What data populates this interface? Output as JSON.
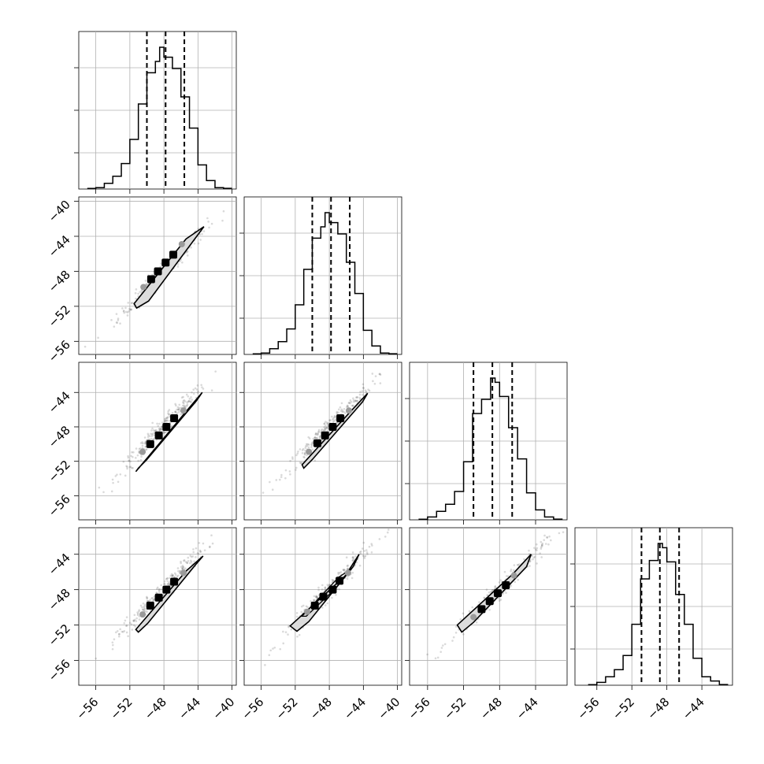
{
  "chart_data": {
    "type": "corner",
    "title": "",
    "parameters": [
      "",
      "",
      "",
      ""
    ],
    "grid": true,
    "columns": [
      {
        "xlim": [
          -58.0,
          -39.5
        ],
        "xticks": [
          -56,
          -52,
          -48,
          -44,
          -40
        ],
        "xticklabels": [
          "−56",
          "−52",
          "−48",
          "−44",
          "−40"
        ]
      },
      {
        "xlim": [
          -58.0,
          -39.5
        ],
        "xticks": [
          -56,
          -52,
          -48,
          -44,
          -40
        ],
        "xticklabels": [
          "−56",
          "−52",
          "−48",
          "−44",
          "−40"
        ]
      },
      {
        "xlim": [
          -58.0,
          -40.5
        ],
        "xticks": [
          -56,
          -52,
          -48,
          -44
        ],
        "xticklabels": [
          "−56",
          "−52",
          "−48",
          "−44"
        ]
      },
      {
        "xlim": [
          -58.5,
          -40.5
        ],
        "xticks": [
          -56,
          -52,
          -48,
          -44
        ],
        "xticklabels": [
          "−56",
          "−52",
          "−48",
          "−44"
        ]
      }
    ],
    "rows": [
      null,
      {
        "ylim": [
          -57.5,
          -39.5
        ],
        "yticks": [
          -56,
          -52,
          -48,
          -44,
          -40
        ],
        "yticklabels": [
          "−56",
          "−52",
          "−48",
          "−44",
          "−40"
        ]
      },
      {
        "ylim": [
          -58.8,
          -40.5
        ],
        "yticks": [
          -56,
          -52,
          -48,
          -44
        ],
        "yticklabels": [
          "−56",
          "−52",
          "−48",
          "−44"
        ]
      },
      {
        "ylim": [
          -58.8,
          -41.0
        ],
        "yticks": [
          -56,
          -52,
          -48,
          -44
        ],
        "yticklabels": [
          "−56",
          "−52",
          "−48",
          "−44"
        ]
      }
    ],
    "histograms": [
      {
        "bin_edges": [
          -57.0,
          -56.0,
          -55.0,
          -54.0,
          -53.0,
          -52.0,
          -51.0,
          -50.0,
          -49.0,
          -48.5,
          -48.0,
          -47.0,
          -46.0,
          -45.0,
          -44.0,
          -43.0,
          -42.0,
          -41.0,
          -40.0
        ],
        "counts": [
          0.004,
          0.01,
          0.04,
          0.09,
          0.18,
          0.35,
          0.6,
          0.82,
          0.9,
          1.0,
          0.93,
          0.85,
          0.65,
          0.43,
          0.17,
          0.06,
          0.01,
          0.005
        ],
        "quantiles": [
          -50.0,
          -47.8,
          -45.6
        ]
      },
      {
        "bin_edges": [
          -57.0,
          -56.0,
          -55.0,
          -54.0,
          -53.0,
          -52.0,
          -51.0,
          -50.0,
          -49.0,
          -48.5,
          -48.0,
          -47.0,
          -46.0,
          -45.0,
          -44.0,
          -43.0,
          -42.0,
          -41.0,
          -40.0
        ],
        "counts": [
          0.004,
          0.01,
          0.04,
          0.09,
          0.18,
          0.35,
          0.6,
          0.82,
          0.9,
          1.0,
          0.93,
          0.85,
          0.65,
          0.43,
          0.17,
          0.06,
          0.01,
          0.005
        ],
        "quantiles": [
          -50.0,
          -47.8,
          -45.6
        ]
      },
      {
        "bin_edges": [
          -57.0,
          -56.0,
          -55.0,
          -54.0,
          -53.0,
          -52.0,
          -51.0,
          -50.0,
          -49.0,
          -48.5,
          -48.0,
          -47.0,
          -46.0,
          -45.0,
          -44.0,
          -43.0,
          -42.0,
          -41.0
        ],
        "counts": [
          0.004,
          0.02,
          0.06,
          0.11,
          0.2,
          0.41,
          0.75,
          0.85,
          1.0,
          0.97,
          0.87,
          0.65,
          0.43,
          0.19,
          0.07,
          0.02,
          0.005
        ],
        "quantiles": [
          -50.9,
          -48.8,
          -46.6
        ]
      },
      {
        "bin_edges": [
          -57.0,
          -56.0,
          -55.0,
          -54.0,
          -53.0,
          -52.0,
          -51.0,
          -50.0,
          -49.0,
          -48.5,
          -48.0,
          -47.0,
          -46.0,
          -45.0,
          -44.0,
          -43.0,
          -42.0,
          -41.0
        ],
        "counts": [
          0.004,
          0.02,
          0.06,
          0.11,
          0.21,
          0.43,
          0.75,
          0.88,
          1.0,
          0.97,
          0.87,
          0.64,
          0.43,
          0.19,
          0.06,
          0.03,
          0.005
        ],
        "quantiles": [
          -50.9,
          -48.8,
          -46.6
        ]
      }
    ],
    "pairs": [
      {
        "row": 1,
        "col": 0,
        "outer": [
          [
            -51.5,
            -51.7
          ],
          [
            -45.4,
            -44.3
          ],
          [
            -43.3,
            -42.9
          ],
          [
            -44.3,
            -44.2
          ],
          [
            -49.8,
            -51.4
          ],
          [
            -51.2,
            -52.2
          ]
        ],
        "core": [
          [
            -49.5,
            -48.9
          ],
          [
            -48.7,
            -48.0
          ],
          [
            -47.8,
            -47.0
          ],
          [
            -46.9,
            -46.1
          ]
        ],
        "core_ends": [
          [
            -50.4,
            -49.8
          ],
          [
            -45.9,
            -44.9
          ]
        ]
      },
      {
        "row": 2,
        "col": 0,
        "outer": [
          [
            -51.3,
            -53.2
          ],
          [
            -45.3,
            -46.1
          ],
          [
            -43.5,
            -44.0
          ],
          [
            -44.2,
            -45.0
          ],
          [
            -50.0,
            -51.8
          ],
          [
            -51.0,
            -52.8
          ]
        ],
        "core": [
          [
            -49.6,
            -50.0
          ],
          [
            -48.6,
            -49.0
          ],
          [
            -47.7,
            -48.0
          ],
          [
            -46.8,
            -47.0
          ]
        ],
        "core_ends": [
          [
            -50.5,
            -50.9
          ],
          [
            -45.7,
            -46.1
          ]
        ]
      },
      {
        "row": 2,
        "col": 1,
        "outer": [
          [
            -51.2,
            -52.4
          ],
          [
            -45.4,
            -46.1
          ],
          [
            -43.5,
            -44.1
          ],
          [
            -44.1,
            -45.1
          ],
          [
            -50.0,
            -51.8
          ],
          [
            -51.0,
            -52.8
          ]
        ],
        "core": [
          [
            -49.4,
            -49.9
          ],
          [
            -48.5,
            -49.0
          ],
          [
            -47.6,
            -48.0
          ],
          [
            -46.7,
            -47.0
          ]
        ],
        "core_ends": [
          [
            -50.4,
            -50.9
          ],
          [
            -45.7,
            -46.1
          ]
        ]
      },
      {
        "row": 3,
        "col": 0,
        "outer": [
          [
            -51.3,
            -52.5
          ],
          [
            -45.4,
            -45.9
          ],
          [
            -43.4,
            -44.2
          ],
          [
            -44.3,
            -45.2
          ],
          [
            -49.9,
            -51.8
          ],
          [
            -51.0,
            -52.8
          ]
        ],
        "core": [
          [
            -49.6,
            -49.8
          ],
          [
            -48.6,
            -48.9
          ],
          [
            -47.7,
            -48.0
          ],
          [
            -46.8,
            -47.1
          ]
        ],
        "core_ends": [
          [
            -50.5,
            -50.8
          ],
          [
            -45.7,
            -46.1
          ]
        ]
      },
      {
        "row": 3,
        "col": 1,
        "outer": [
          [
            -52.6,
            -52.1
          ],
          [
            -46.1,
            -46.4
          ],
          [
            -44.5,
            -44.0
          ],
          [
            -45.2,
            -45.4
          ],
          [
            -50.4,
            -51.6
          ],
          [
            -51.8,
            -52.7
          ]
        ],
        "inner": [
          [
            -51.2,
            -51.0
          ],
          [
            -46.9,
            -46.6
          ],
          [
            -45.5,
            -45.7
          ],
          [
            -47.2,
            -47.8
          ],
          [
            -50.7,
            -51.0
          ]
        ],
        "core": [
          [
            -49.7,
            -49.8
          ],
          [
            -48.7,
            -48.8
          ],
          [
            -47.6,
            -48.0
          ],
          [
            -46.8,
            -47.0
          ]
        ],
        "core_ends": [
          [
            -50.6,
            -50.5
          ],
          [
            -45.8,
            -46.1
          ]
        ]
      },
      {
        "row": 3,
        "col": 2,
        "outer": [
          [
            -52.7,
            -52.0
          ],
          [
            -46.5,
            -46.2
          ],
          [
            -44.5,
            -44.0
          ],
          [
            -45.0,
            -45.4
          ],
          [
            -50.9,
            -51.7
          ],
          [
            -52.2,
            -52.8
          ]
        ],
        "core": [
          [
            -50.0,
            -50.2
          ],
          [
            -49.1,
            -49.3
          ],
          [
            -48.2,
            -48.4
          ],
          [
            -47.3,
            -47.5
          ]
        ],
        "core_ends": [
          [
            -50.9,
            -51.1
          ],
          [
            -46.4,
            -46.4
          ]
        ]
      }
    ]
  }
}
